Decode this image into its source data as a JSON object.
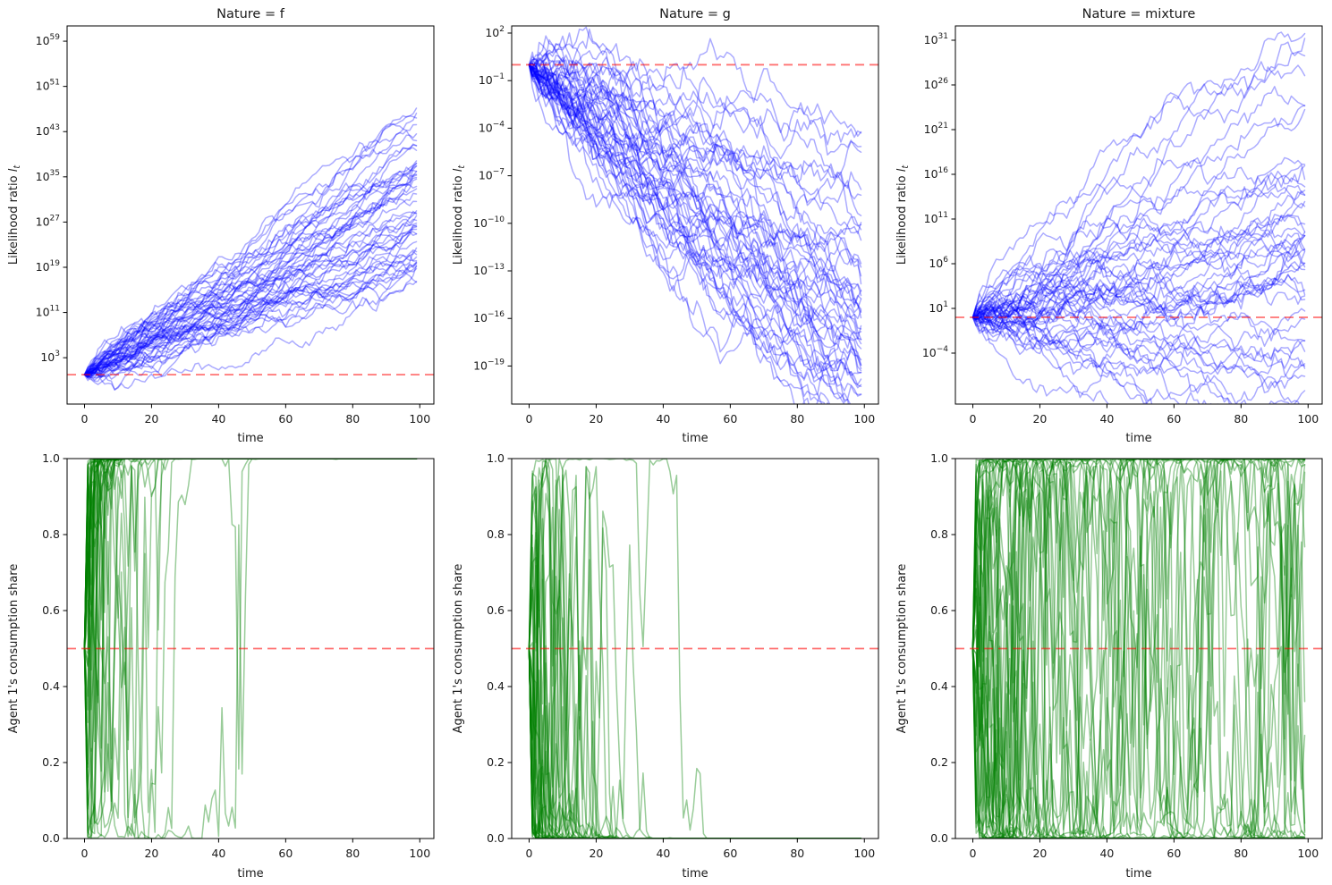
{
  "figure": {
    "kind": "simulation-grid",
    "n_rows": 2,
    "n_cols": 3
  },
  "chart_data": [
    {
      "type": "line",
      "panel": "top-left",
      "title": "Nature = f",
      "xlabel": "time",
      "ylabel": "Likelihood ratio l_t",
      "x_ticks": [
        0,
        20,
        40,
        60,
        80,
        100
      ],
      "xlim": [
        -5.2,
        104.2
      ],
      "y_scale": "log10",
      "ylim_log10": [
        -5.2,
        61.7
      ],
      "y_tick_labels": [
        "10^59",
        "10^51",
        "10^43",
        "10^35",
        "10^27",
        "10^19",
        "10^11",
        "10^3"
      ],
      "grid": false,
      "legend": false,
      "ref_line": {
        "y_log10": 0,
        "color": "#ff0000",
        "alpha": 0.55,
        "style": "dashed"
      },
      "line_color": "#0000ff",
      "line_alpha": 0.33,
      "line_width": 1.5,
      "series_model": {
        "kind": "log10-random-walk",
        "n_series": 50,
        "n_points": 100,
        "start_log10": 0,
        "drift_per_step_log10": 0.3,
        "drift_sd_across_series": 0.08,
        "noise_sd_per_step_log10": 0.55,
        "seed": 42,
        "end_range_log10": [
          11,
          59
        ]
      }
    },
    {
      "type": "line",
      "panel": "top-middle",
      "title": "Nature = g",
      "xlabel": "time",
      "ylabel": "Likelihood ratio l_t",
      "x_ticks": [
        0,
        20,
        40,
        60,
        80,
        100
      ],
      "xlim": [
        -5.2,
        104.2
      ],
      "y_scale": "log10",
      "ylim_log10": [
        -21.4,
        2.45
      ],
      "y_tick_labels": [
        "10^2",
        "10^−1",
        "10^−4",
        "10^−7",
        "10^−10",
        "10^−13",
        "10^−16",
        "10^−19"
      ],
      "grid": false,
      "legend": false,
      "ref_line": {
        "y_log10": 0,
        "color": "#ff0000",
        "alpha": 0.55,
        "style": "dashed"
      },
      "line_color": "#0000ff",
      "line_alpha": 0.33,
      "line_width": 1.5,
      "series_model": {
        "kind": "log10-random-walk",
        "n_series": 50,
        "n_points": 100,
        "start_log10": 0,
        "drift_per_step_log10": -0.155,
        "drift_sd_across_series": 0.028,
        "noise_sd_per_step_log10": 0.45,
        "seed": 7,
        "end_range_log10": [
          -21,
          -9
        ]
      }
    },
    {
      "type": "line",
      "panel": "top-right",
      "title": "Nature = mixture",
      "xlabel": "time",
      "ylabel": "Likelihood ratio l_t",
      "x_ticks": [
        0,
        20,
        40,
        60,
        80,
        100
      ],
      "xlim": [
        -5.2,
        104.2
      ],
      "y_scale": "log10",
      "ylim_log10": [
        -9.7,
        32.6
      ],
      "y_tick_labels": [
        "10^31",
        "10^26",
        "10^21",
        "10^16",
        "10^11",
        "10^6",
        "10^1",
        "10^−4"
      ],
      "grid": false,
      "legend": false,
      "ref_line": {
        "y_log10": 0,
        "color": "#ff0000",
        "alpha": 0.55,
        "style": "dashed"
      },
      "line_color": "#0000ff",
      "line_alpha": 0.33,
      "line_width": 1.5,
      "series_model": {
        "kind": "log10-random-walk",
        "n_series": 50,
        "n_points": 100,
        "start_log10": 0,
        "drift_per_step_log10": 0.07,
        "drift_sd_across_series": 0.11,
        "noise_sd_per_step_log10": 0.55,
        "seed": 13,
        "end_range_log10": [
          -7,
          31
        ]
      }
    },
    {
      "type": "line",
      "panel": "bottom-left",
      "title": "",
      "xlabel": "time",
      "ylabel": "Agent 1's consumption share",
      "x_ticks": [
        0,
        20,
        40,
        60,
        80,
        100
      ],
      "xlim": [
        -5.2,
        104.2
      ],
      "y_scale": "linear",
      "ylim": [
        0,
        1
      ],
      "y_tick_labels": [
        "1.0",
        "0.8",
        "0.6",
        "0.4",
        "0.2",
        "0.0"
      ],
      "grid": false,
      "legend": false,
      "ref_line": {
        "y": 0.5,
        "color": "#ff0000",
        "alpha": 0.55,
        "style": "dashed"
      },
      "line_color": "#008000",
      "line_alpha": 0.4,
      "line_width": 1.5,
      "series_model": {
        "kind": "logistic-random-walk",
        "n_series": 50,
        "n_points": 100,
        "start_share": 0.5,
        "logodds_drift_per_step": 0.85,
        "drift_sd_across_series": 0.15,
        "logodds_noise_sd_per_step": 2.3,
        "seed": 99,
        "long_run_share": 1.0
      }
    },
    {
      "type": "line",
      "panel": "bottom-middle",
      "title": "",
      "xlabel": "time",
      "ylabel": "Agent 1's consumption share",
      "x_ticks": [
        0,
        20,
        40,
        60,
        80,
        100
      ],
      "xlim": [
        -5.2,
        104.2
      ],
      "y_scale": "linear",
      "ylim": [
        0,
        1
      ],
      "y_tick_labels": [
        "1.0",
        "0.8",
        "0.6",
        "0.4",
        "0.2",
        "0.0"
      ],
      "grid": false,
      "legend": false,
      "ref_line": {
        "y": 0.5,
        "color": "#ff0000",
        "alpha": 0.55,
        "style": "dashed"
      },
      "line_color": "#008000",
      "line_alpha": 0.4,
      "line_width": 1.5,
      "series_model": {
        "kind": "logistic-random-walk",
        "n_series": 50,
        "n_points": 100,
        "start_share": 0.5,
        "logodds_drift_per_step": -0.85,
        "drift_sd_across_series": 0.15,
        "logodds_noise_sd_per_step": 2.3,
        "seed": 5,
        "long_run_share": 0.0
      }
    },
    {
      "type": "line",
      "panel": "bottom-right",
      "title": "",
      "xlabel": "time",
      "ylabel": "Agent 1's consumption share",
      "x_ticks": [
        0,
        20,
        40,
        60,
        80,
        100
      ],
      "xlim": [
        -5.2,
        104.2
      ],
      "y_scale": "linear",
      "ylim": [
        0,
        1
      ],
      "y_tick_labels": [
        "1.0",
        "0.8",
        "0.6",
        "0.4",
        "0.2",
        "0.0"
      ],
      "grid": false,
      "legend": false,
      "ref_line": {
        "y": 0.5,
        "color": "#ff0000",
        "alpha": 0.55,
        "style": "dashed"
      },
      "line_color": "#008000",
      "line_alpha": 0.4,
      "line_width": 1.5,
      "series_model": {
        "kind": "logistic-random-walk",
        "n_series": 50,
        "n_points": 100,
        "start_share": 0.5,
        "logodds_drift_per_step": 0.0,
        "drift_sd_across_series": 0.03,
        "logodds_noise_sd_per_step": 2.0,
        "seed": 21,
        "long_run_share": null
      }
    }
  ]
}
